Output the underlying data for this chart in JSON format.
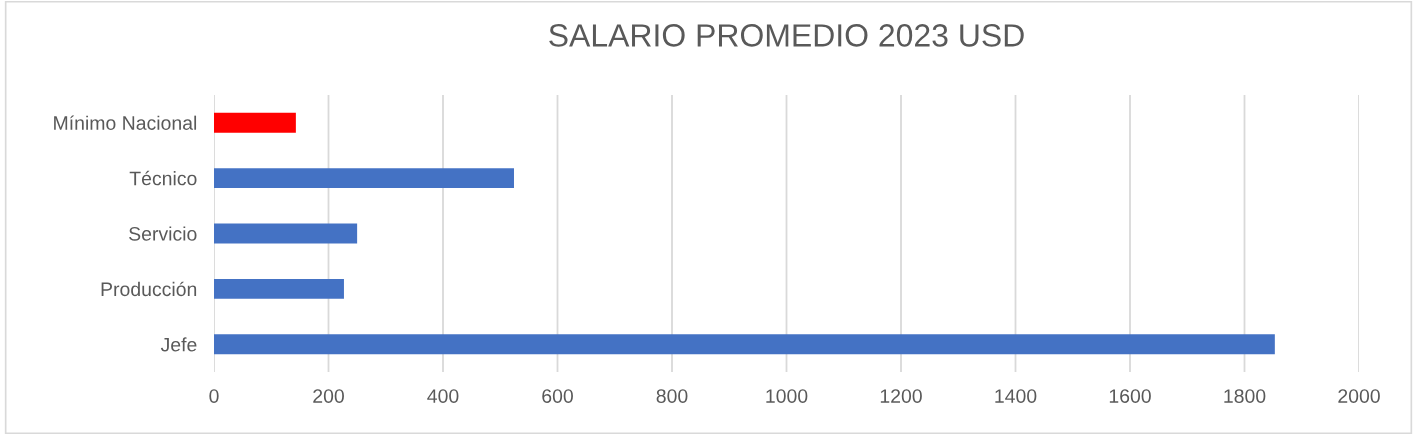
{
  "chart_data": {
    "type": "bar",
    "orientation": "horizontal",
    "title": "SALARIO PROMEDIO 2023 USD",
    "categories": [
      "Mínimo Nacional",
      "Técnico",
      "Servicio",
      "Producción",
      "Jefe"
    ],
    "values": [
      143,
      524,
      250,
      227,
      1853
    ],
    "colors": [
      "#ff0000",
      "#4472c4",
      "#4472c4",
      "#4472c4",
      "#4472c4"
    ],
    "xlim": [
      0,
      2000
    ],
    "xticks": [
      0,
      200,
      400,
      600,
      800,
      1000,
      1200,
      1400,
      1600,
      1800,
      2000
    ],
    "grid": "x",
    "legend": false
  }
}
